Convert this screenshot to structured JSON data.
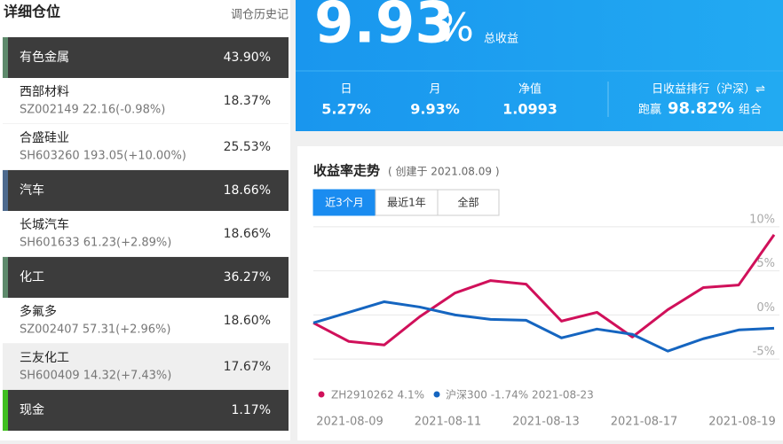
{
  "holdings": {
    "title": "详细仓位",
    "history_link": "调仓历史记",
    "rows": [
      {
        "name": "有色金属",
        "weight": "43.90%",
        "color": "#5e8a6c"
      },
      {
        "name": "西部材料",
        "quote": "SZ002149 22.16(-0.98%)",
        "weight": "18.37%"
      },
      {
        "name": "合盛硅业",
        "quote": "SH603260 193.05(+10.00%)",
        "weight": "25.53%"
      },
      {
        "name": "汽车",
        "weight": "18.66%",
        "color": "#4d6a8e"
      },
      {
        "name": "长城汽车",
        "quote": "SH601633 61.23(+2.89%)",
        "weight": "18.66%"
      },
      {
        "name": "化工",
        "weight": "36.27%",
        "color": "#5e8a6c"
      },
      {
        "name": "多氟多",
        "quote": "SZ002407 57.31(+2.96%)",
        "weight": "18.60%"
      },
      {
        "name": "三友化工",
        "quote": "SH600409 14.32(+7.43%)",
        "weight": "17.67%"
      },
      {
        "name": "现金",
        "weight": "1.17%",
        "color": "#3fbf1f"
      }
    ]
  },
  "summary": {
    "total_return": {
      "value": "9.93",
      "unit": "%"
    },
    "total_label": "总收益",
    "stats": [
      {
        "label": "日",
        "value": "5.27%"
      },
      {
        "label": "月",
        "value": "9.93%"
      },
      {
        "label": "净值",
        "value": "1.0993"
      }
    ],
    "rank_label": "日收益排行（沪深）⇌",
    "beat_prefix": "跑赢",
    "beat_value": "98.82%",
    "beat_suffix": "组合"
  },
  "chart_data": {
    "type": "line",
    "title": "收益率走势",
    "subtitle": "( 创建于 2021.08.09 )",
    "ranges": [
      "近3个月",
      "最近1年",
      "全部"
    ],
    "x_labels": [
      "2021-08-09",
      "2021-08-11",
      "2021-08-13",
      "2021-08-17",
      "2021-08-19"
    ],
    "series": [
      {
        "name": "ZH2910262 4.1%",
        "color": "#d0105a",
        "values": [
          -0.9,
          -3.0,
          -3.4,
          -0.2,
          2.5,
          3.9,
          3.5,
          -0.7,
          0.3,
          -2.5,
          0.6,
          3.1,
          3.4,
          9.1
        ]
      },
      {
        "name": "沪深300 -1.74% 2021-08-23",
        "color": "#1565c0",
        "values": [
          -0.9,
          0.3,
          1.5,
          0.9,
          0.0,
          -0.5,
          -0.6,
          -2.6,
          -1.6,
          -2.2,
          -4.1,
          -2.7,
          -1.7,
          -1.5
        ]
      }
    ],
    "ylim": [
      -7.5,
      11.5
    ],
    "yticks": [
      {
        "value": 10,
        "label": "10%"
      },
      {
        "value": 5,
        "label": "5%"
      },
      {
        "value": 0,
        "label": "0%"
      },
      {
        "value": -5,
        "label": "-5%"
      }
    ],
    "grid": true
  }
}
